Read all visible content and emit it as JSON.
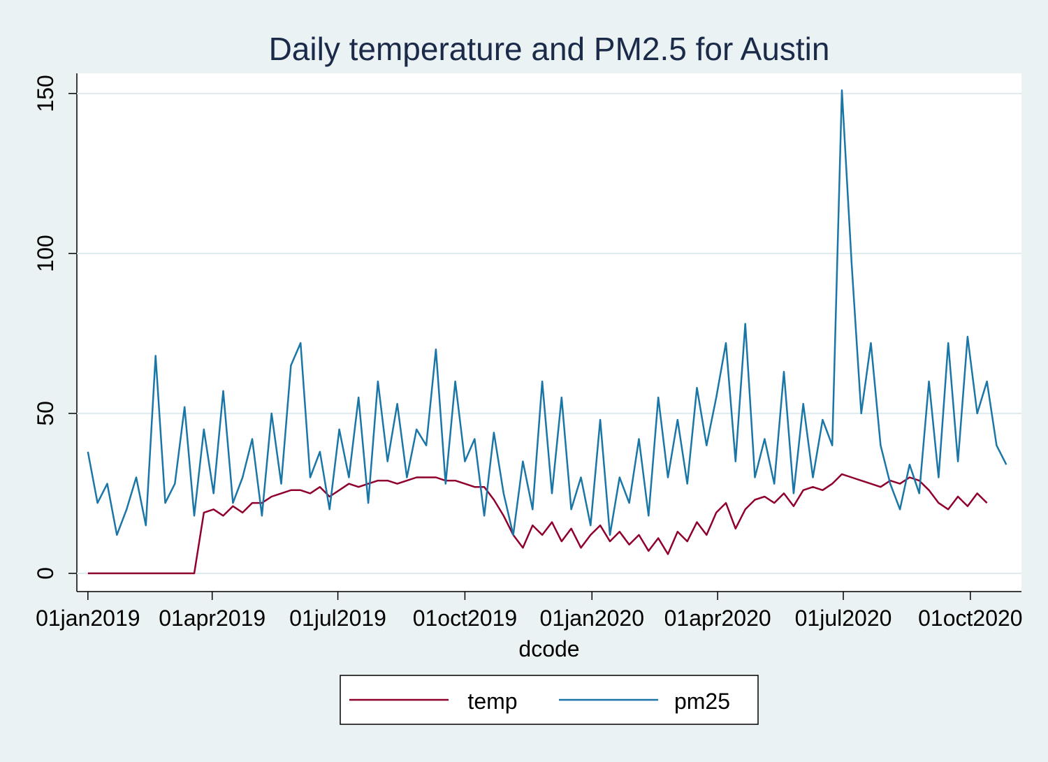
{
  "chart_data": {
    "type": "line",
    "title": "Daily temperature and PM2.5 for Austin",
    "x_label": "dcode",
    "x": [
      "01jan2019",
      "08jan2019",
      "15jan2019",
      "22jan2019",
      "29jan2019",
      "05feb2019",
      "12feb2019",
      "19feb2019",
      "26feb2019",
      "05mar2019",
      "12mar2019",
      "19mar2019",
      "26mar2019",
      "02apr2019",
      "09apr2019",
      "16apr2019",
      "23apr2019",
      "30apr2019",
      "07may2019",
      "14may2019",
      "21may2019",
      "28may2019",
      "04jun2019",
      "11jun2019",
      "18jun2019",
      "25jun2019",
      "02jul2019",
      "09jul2019",
      "16jul2019",
      "23jul2019",
      "30jul2019",
      "06aug2019",
      "13aug2019",
      "20aug2019",
      "27aug2019",
      "03sep2019",
      "10sep2019",
      "17sep2019",
      "24sep2019",
      "01oct2019",
      "08oct2019",
      "15oct2019",
      "22oct2019",
      "29oct2019",
      "05nov2019",
      "12nov2019",
      "19nov2019",
      "26nov2019",
      "03dec2019",
      "10dec2019",
      "17dec2019",
      "24dec2019",
      "31dec2019",
      "07jan2020",
      "14jan2020",
      "21jan2020",
      "28jan2020",
      "04feb2020",
      "11feb2020",
      "18feb2020",
      "25feb2020",
      "03mar2020",
      "10mar2020",
      "17mar2020",
      "24mar2020",
      "31mar2020",
      "07apr2020",
      "14apr2020",
      "21apr2020",
      "28apr2020",
      "05may2020",
      "12may2020",
      "19may2020",
      "26may2020",
      "02jun2020",
      "09jun2020",
      "16jun2020",
      "23jun2020",
      "30jun2020",
      "07jul2020",
      "14jul2020",
      "21jul2020",
      "28jul2020",
      "04aug2020",
      "11aug2020",
      "18aug2020",
      "25aug2020",
      "01sep2020",
      "08sep2020",
      "15sep2020",
      "22sep2020",
      "29sep2020",
      "06oct2020",
      "13oct2020",
      "20oct2020",
      "27oct2020"
    ],
    "series": [
      {
        "name": "temp",
        "color": "#90002d",
        "values": [
          0,
          0,
          0,
          0,
          0,
          0,
          0,
          0,
          0,
          0,
          0,
          0,
          19,
          20,
          18,
          21,
          19,
          22,
          22,
          24,
          25,
          26,
          26,
          25,
          27,
          24,
          26,
          28,
          27,
          28,
          29,
          29,
          28,
          29,
          30,
          30,
          30,
          29,
          29,
          28,
          27,
          27,
          23,
          18,
          12,
          8,
          15,
          12,
          16,
          10,
          14,
          8,
          12,
          15,
          10,
          13,
          9,
          12,
          7,
          11,
          6,
          13,
          10,
          16,
          12,
          19,
          22,
          14,
          20,
          23,
          24,
          22,
          25,
          21,
          26,
          27,
          26,
          28,
          31,
          30,
          29,
          28,
          27,
          29,
          28,
          30,
          29,
          26,
          22,
          20,
          24,
          21,
          25,
          22,
          null,
          null
        ]
      },
      {
        "name": "pm25",
        "color": "#1a76a6",
        "values": [
          38,
          22,
          28,
          12,
          20,
          30,
          15,
          68,
          22,
          28,
          52,
          18,
          45,
          25,
          57,
          22,
          30,
          42,
          18,
          50,
          28,
          65,
          72,
          30,
          38,
          20,
          45,
          30,
          55,
          22,
          60,
          35,
          53,
          30,
          45,
          40,
          70,
          28,
          60,
          35,
          42,
          18,
          44,
          25,
          12,
          35,
          20,
          60,
          25,
          55,
          20,
          30,
          15,
          48,
          12,
          30,
          22,
          42,
          18,
          55,
          30,
          48,
          28,
          58,
          40,
          55,
          72,
          35,
          78,
          30,
          42,
          28,
          63,
          25,
          53,
          30,
          48,
          40,
          151,
          97,
          50,
          72,
          40,
          28,
          20,
          34,
          25,
          60,
          30,
          72,
          35,
          74,
          50,
          60,
          40,
          34
        ]
      }
    ],
    "xlim": [
      "24dec2018",
      "07nov2020"
    ],
    "xticks": [
      "01jan2019",
      "01apr2019",
      "01jul2019",
      "01oct2019",
      "01jan2020",
      "01apr2020",
      "01jul2020",
      "01oct2020"
    ],
    "ylim": [
      -5.7,
      156.3
    ],
    "yticks": [
      0,
      50,
      100,
      150
    ],
    "grid": true,
    "legend": "bottom"
  }
}
